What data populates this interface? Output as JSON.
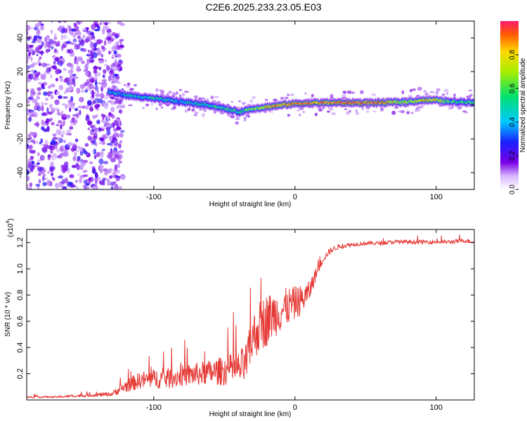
{
  "title": "C2E6.2025.233.23.05.E03",
  "chart_data": [
    {
      "type": "heatmap",
      "name": "spectrogram",
      "xlabel": "Height of straight line (km)",
      "ylabel": "Frequency (Hz)",
      "xlim": [
        -190,
        127
      ],
      "ylim": [
        -50,
        50
      ],
      "xticks": [
        -100,
        0,
        100
      ],
      "xtick_labels": [
        "-100",
        "0",
        "100"
      ],
      "yticks": [
        -40,
        -20,
        0,
        20,
        40
      ],
      "ytick_labels": [
        "-40",
        "-20",
        "0",
        "20",
        "40"
      ],
      "noise_region_x": [
        -190,
        -128
      ],
      "ridge": {
        "x": [
          -132,
          -120,
          -110,
          -100,
          -90,
          -80,
          -70,
          -60,
          -50,
          -40,
          -30,
          -20,
          -10,
          0,
          20,
          40,
          60,
          80,
          90,
          100,
          110,
          127
        ],
        "freq_hz": [
          8,
          6,
          5,
          4,
          3,
          2,
          1,
          0,
          -2,
          -4,
          -2,
          -1,
          0,
          1,
          1.5,
          1.5,
          1.5,
          2,
          3,
          3,
          2,
          2
        ],
        "amplitude": [
          0.4,
          0.4,
          0.45,
          0.5,
          0.45,
          0.4,
          0.5,
          0.5,
          0.55,
          0.5,
          0.6,
          0.8,
          0.85,
          0.9,
          0.9,
          0.95,
          0.9,
          0.7,
          0.8,
          0.8,
          0.6,
          0.5
        ]
      },
      "colorbar": {
        "label": "Normalized spectral amplitude",
        "range": [
          0,
          1
        ],
        "ticks": [
          0.0,
          0.2,
          0.4,
          0.6,
          0.8
        ],
        "tick_labels": [
          "0.0",
          "0.2",
          "0.4",
          "0.6",
          "0.8"
        ]
      }
    },
    {
      "type": "line",
      "name": "snr",
      "xlabel": "Height of straight line (km)",
      "ylabel": "SNR (10 * v/v)",
      "multiplier_label": "(x10",
      "multiplier_exp": "4",
      "xlim": [
        -190,
        127
      ],
      "ylim": [
        0,
        1.3
      ],
      "xticks": [
        -100,
        0,
        100
      ],
      "xtick_labels": [
        "-100",
        "0",
        "100"
      ],
      "yticks": [
        0.2,
        0.4,
        0.6,
        0.8,
        1.0,
        1.2
      ],
      "ytick_labels": [
        "0.2",
        "0.4",
        "0.6",
        "0.8",
        "1.0",
        "1.2"
      ],
      "series": [
        {
          "name": "SNR",
          "color": "#e53935",
          "x": [
            -190,
            -170,
            -150,
            -130,
            -120,
            -110,
            -100,
            -90,
            -80,
            -70,
            -60,
            -50,
            -40,
            -35,
            -33,
            -30,
            -25,
            -20,
            -15,
            -10,
            -5,
            0,
            5,
            10,
            15,
            20,
            25,
            30,
            40,
            50,
            60,
            70,
            80,
            90,
            100,
            110,
            120,
            127
          ],
          "y": [
            0.02,
            0.02,
            0.03,
            0.04,
            0.09,
            0.13,
            0.14,
            0.14,
            0.16,
            0.17,
            0.18,
            0.19,
            0.2,
            0.22,
            0.3,
            0.42,
            0.5,
            0.55,
            0.6,
            0.63,
            0.67,
            0.7,
            0.73,
            0.8,
            0.95,
            1.07,
            1.13,
            1.16,
            1.18,
            1.19,
            1.19,
            1.2,
            1.2,
            1.2,
            1.2,
            1.2,
            1.21,
            1.2
          ],
          "noise_amplitude": [
            0.01,
            0.01,
            0.015,
            0.02,
            0.06,
            0.08,
            0.09,
            0.1,
            0.1,
            0.11,
            0.12,
            0.14,
            0.16,
            0.2,
            0.2,
            0.22,
            0.25,
            0.25,
            0.22,
            0.2,
            0.18,
            0.16,
            0.14,
            0.1,
            0.06,
            0.03,
            0.03,
            0.025,
            0.02,
            0.02,
            0.02,
            0.02,
            0.02,
            0.02,
            0.02,
            0.02,
            0.02,
            0.02
          ]
        }
      ]
    }
  ]
}
